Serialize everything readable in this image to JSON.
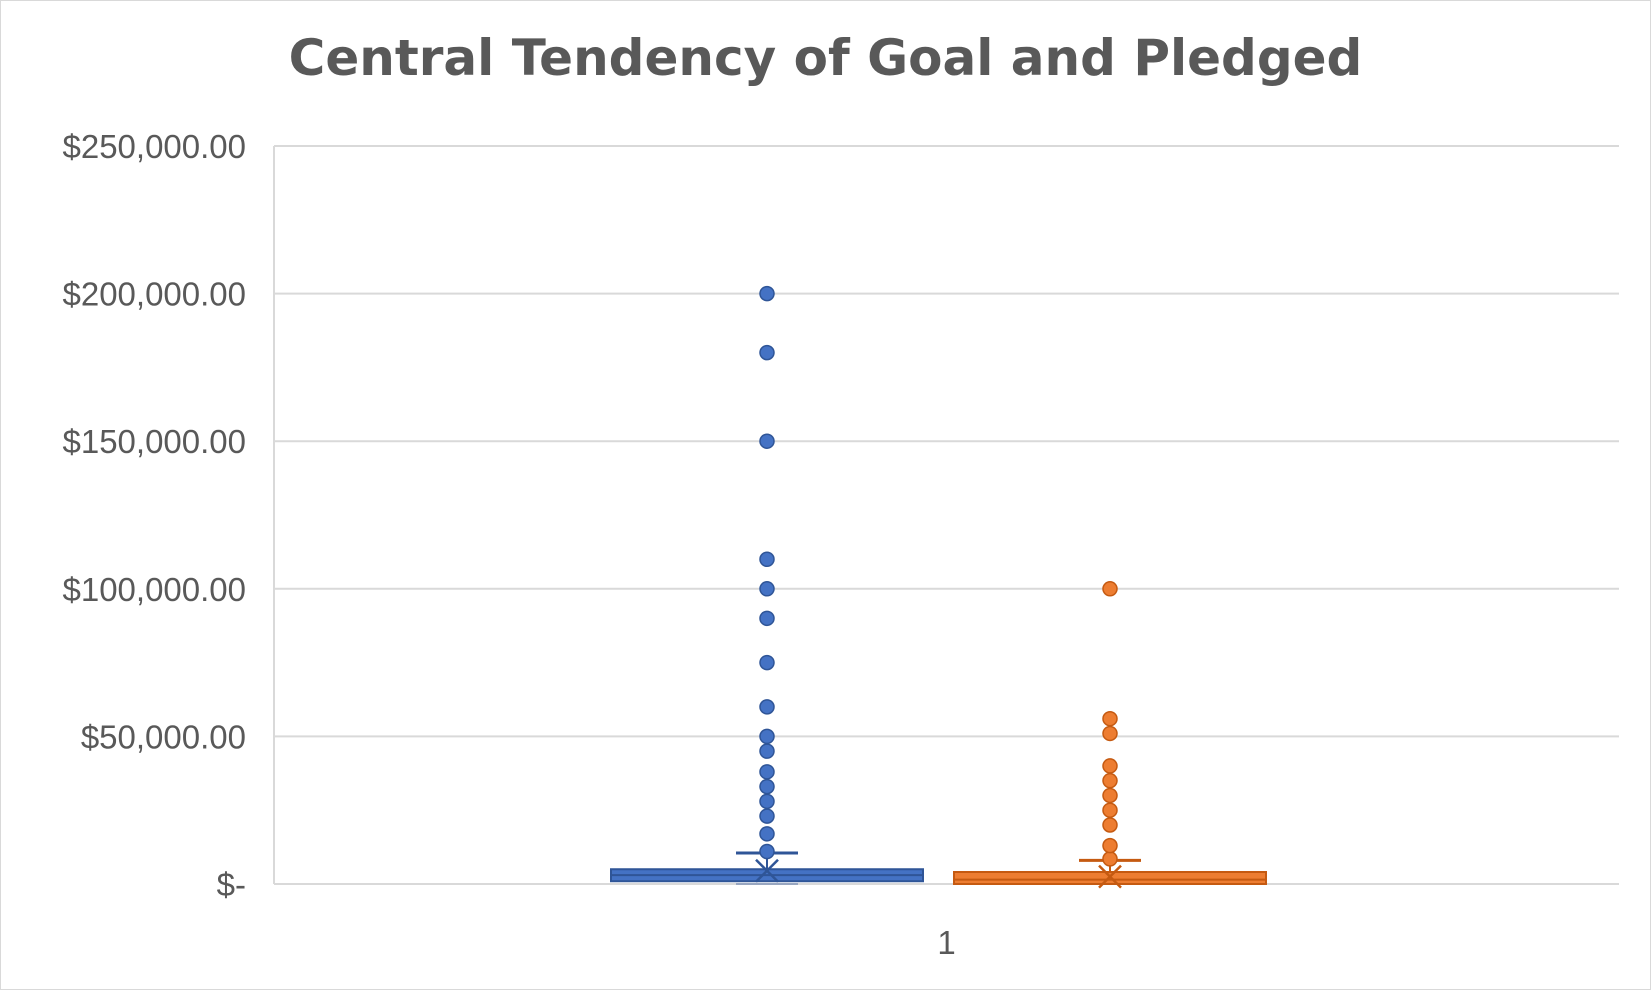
{
  "chart_data": {
    "type": "box",
    "title": "Central Tendency of Goal and Pledged",
    "xlabel": "",
    "ylabel": "",
    "categories": [
      "1"
    ],
    "ylim": [
      0,
      250000
    ],
    "y_tick_values": [
      0,
      50000,
      100000,
      150000,
      200000,
      250000
    ],
    "y_tick_labels": [
      "$-",
      "$50,000.00",
      "$100,000.00",
      "$150,000.00",
      "$200,000.00",
      "$250,000.00"
    ],
    "grid": true,
    "legend": "none",
    "series": [
      {
        "color": "#4472c4",
        "outline": "#2f5597",
        "min": 0,
        "q1": 1000,
        "median": 3000,
        "q3": 5000,
        "max": 10500,
        "mean": 4500,
        "outliers": [
          11000,
          17000,
          23000,
          28000,
          33000,
          38000,
          45000,
          50000,
          60000,
          75000,
          90000,
          100000,
          110000,
          150000,
          180000,
          200000
        ]
      },
      {
        "color": "#ed7d31",
        "outline": "#c55a11",
        "min": 0,
        "q1": 500,
        "median": 1500,
        "q3": 3500,
        "max": 8000,
        "mean": 2500,
        "outliers": [
          8500,
          13000,
          20000,
          25000,
          30000,
          35000,
          40000,
          51000,
          56000,
          100000
        ]
      }
    ]
  }
}
